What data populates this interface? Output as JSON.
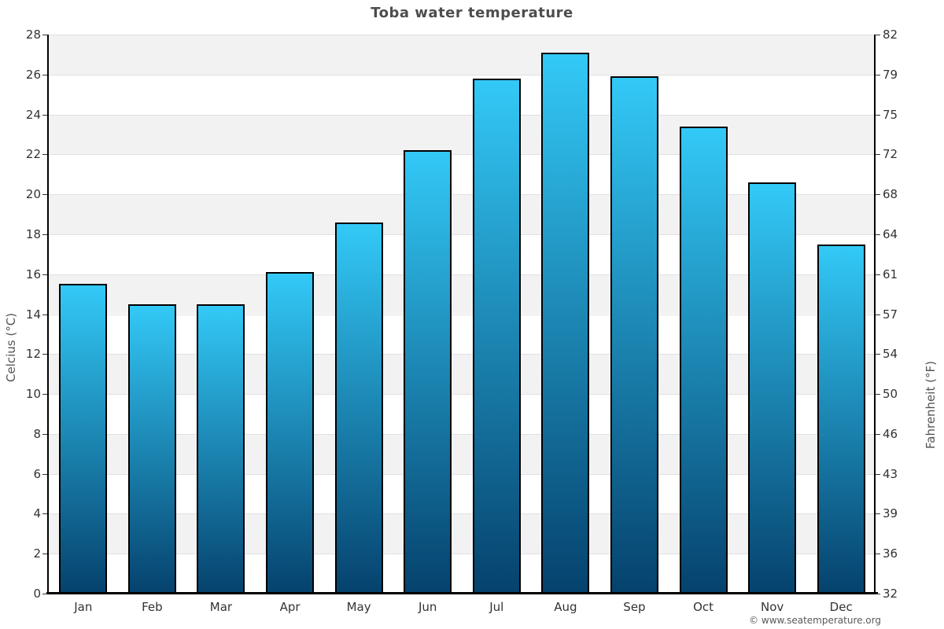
{
  "header": {
    "title": "Toba water temperature"
  },
  "footer": {
    "credit": "© www.seatemperature.org"
  },
  "chart_data": {
    "type": "bar",
    "title": "Toba water temperature",
    "categories": [
      "Jan",
      "Feb",
      "Mar",
      "Apr",
      "May",
      "Jun",
      "Jul",
      "Aug",
      "Sep",
      "Oct",
      "Nov",
      "Dec"
    ],
    "values": [
      15.5,
      14.5,
      14.5,
      16.1,
      18.6,
      22.2,
      25.8,
      27.1,
      25.9,
      23.4,
      20.6,
      17.5
    ],
    "xlabel": "",
    "ylabel_left": "Celcius (°C)",
    "ylabel_right": "Fahrenheit (°F)",
    "ylim": [
      0,
      28
    ],
    "yticks_left": [
      28,
      26,
      24,
      22,
      20,
      18,
      16,
      14,
      12,
      10,
      8,
      6,
      4,
      2,
      0
    ],
    "yticks_right": [
      82,
      79,
      75,
      72,
      68,
      64,
      61,
      57,
      54,
      50,
      46,
      43,
      39,
      36,
      32
    ],
    "grid": true,
    "legend": "none",
    "colors": {
      "bar_gradient_top": "#33C9F7",
      "bar_gradient_bottom": "#05426D",
      "bar_border": "#000000",
      "band_alt": "#F2F2F2",
      "band_main": "#FFFFFF",
      "gridline": "#E0E0E0",
      "axis_line": "#000000",
      "tick_label": "#333333",
      "axis_title": "#555555",
      "title": "#4D4D4D",
      "credit": "#595959"
    }
  }
}
